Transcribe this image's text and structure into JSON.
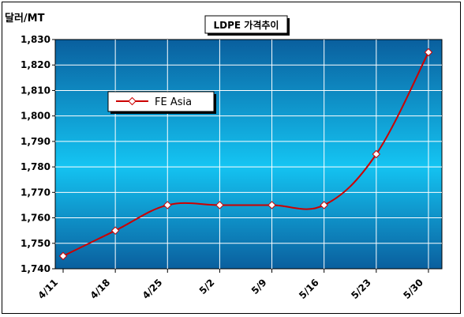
{
  "chart_data": {
    "type": "line",
    "title": "LDPE 가격추이",
    "ylabel": "달러/MT",
    "xlabel": "",
    "categories": [
      "4/11",
      "4/18",
      "4/25",
      "5/2",
      "5/9",
      "5/16",
      "5/23",
      "5/30"
    ],
    "series": [
      {
        "name": "FE Asia",
        "values": [
          1745,
          1755,
          1765,
          1765,
          1765,
          1765,
          1785,
          1825
        ]
      }
    ],
    "ylim": [
      1740,
      1830
    ],
    "yticks": [
      "1,740",
      "1,750",
      "1,760",
      "1,770",
      "1,780",
      "1,790",
      "1,800",
      "1,810",
      "1,820",
      "1,830"
    ],
    "grid": true,
    "legend": "upper-left",
    "colors": {
      "line": "#cc0000",
      "marker_fill": "#ffffff",
      "plot_gradient_top": "#0a5f9e",
      "plot_gradient_mid": "#14c4f2",
      "plot_gradient_bottom": "#0a5f9e",
      "grid": "#ffffff"
    }
  }
}
